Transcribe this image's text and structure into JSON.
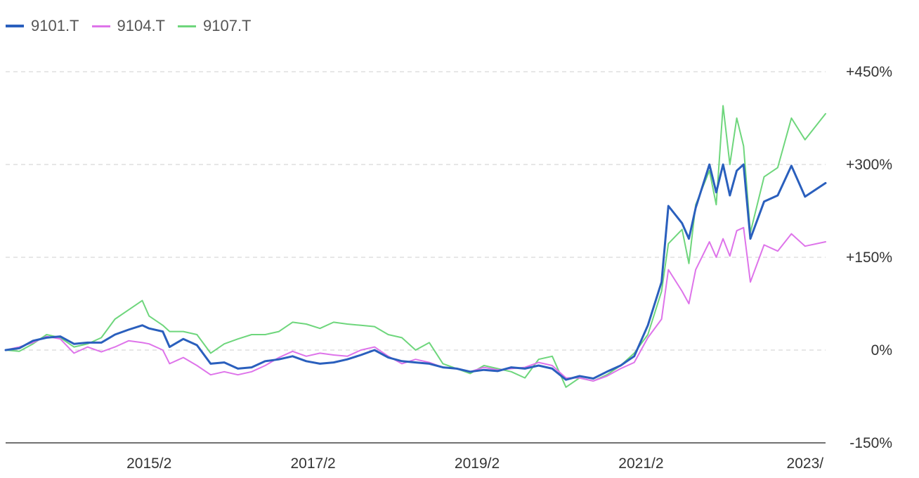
{
  "chart_data": {
    "type": "line",
    "legend_position": "top-left",
    "grid": "horizontal-dashed",
    "y_ticks": [
      {
        "value": 450,
        "label": "+450%"
      },
      {
        "value": 300,
        "label": "+300%"
      },
      {
        "value": 150,
        "label": "+150%"
      },
      {
        "value": 0,
        "label": "0%"
      },
      {
        "value": -150,
        "label": "-150%"
      }
    ],
    "ylim": [
      -150,
      450
    ],
    "x_start": "2013-05",
    "x_end": "2023-05",
    "x_ticks": [
      {
        "date": "2015-02",
        "label": "2015/2"
      },
      {
        "date": "2017-02",
        "label": "2017/2"
      },
      {
        "date": "2019-02",
        "label": "2019/2"
      },
      {
        "date": "2021-02",
        "label": "2021/2"
      },
      {
        "date": "2023-02",
        "label": "2023/"
      }
    ],
    "series": [
      {
        "name": "9101.T",
        "color": "#2a5fbd",
        "width": 3,
        "points": [
          [
            "2013-05",
            0
          ],
          [
            "2013-07",
            3
          ],
          [
            "2013-09",
            15
          ],
          [
            "2013-11",
            20
          ],
          [
            "2014-01",
            22
          ],
          [
            "2014-03",
            10
          ],
          [
            "2014-05",
            12
          ],
          [
            "2014-07",
            12
          ],
          [
            "2014-09",
            25
          ],
          [
            "2014-11",
            33
          ],
          [
            "2015-01",
            40
          ],
          [
            "2015-02",
            35
          ],
          [
            "2015-04",
            30
          ],
          [
            "2015-05",
            5
          ],
          [
            "2015-07",
            18
          ],
          [
            "2015-09",
            8
          ],
          [
            "2015-11",
            -22
          ],
          [
            "2016-01",
            -20
          ],
          [
            "2016-03",
            -30
          ],
          [
            "2016-05",
            -28
          ],
          [
            "2016-07",
            -18
          ],
          [
            "2016-09",
            -15
          ],
          [
            "2016-11",
            -10
          ],
          [
            "2017-01",
            -18
          ],
          [
            "2017-03",
            -22
          ],
          [
            "2017-05",
            -20
          ],
          [
            "2017-07",
            -15
          ],
          [
            "2017-09",
            -8
          ],
          [
            "2017-11",
            0
          ],
          [
            "2018-01",
            -12
          ],
          [
            "2018-03",
            -18
          ],
          [
            "2018-05",
            -20
          ],
          [
            "2018-07",
            -22
          ],
          [
            "2018-09",
            -28
          ],
          [
            "2018-11",
            -30
          ],
          [
            "2019-01",
            -35
          ],
          [
            "2019-03",
            -32
          ],
          [
            "2019-05",
            -34
          ],
          [
            "2019-07",
            -28
          ],
          [
            "2019-09",
            -30
          ],
          [
            "2019-11",
            -25
          ],
          [
            "2020-01",
            -30
          ],
          [
            "2020-03",
            -48
          ],
          [
            "2020-05",
            -42
          ],
          [
            "2020-07",
            -46
          ],
          [
            "2020-09",
            -35
          ],
          [
            "2020-11",
            -25
          ],
          [
            "2021-01",
            -10
          ],
          [
            "2021-03",
            40
          ],
          [
            "2021-05",
            110
          ],
          [
            "2021-06",
            233
          ],
          [
            "2021-08",
            205
          ],
          [
            "2021-09",
            180
          ],
          [
            "2021-10",
            230
          ],
          [
            "2021-12",
            300
          ],
          [
            "2022-01",
            255
          ],
          [
            "2022-02",
            300
          ],
          [
            "2022-03",
            250
          ],
          [
            "2022-04",
            290
          ],
          [
            "2022-05",
            300
          ],
          [
            "2022-06",
            180
          ],
          [
            "2022-08",
            240
          ],
          [
            "2022-10",
            250
          ],
          [
            "2022-12",
            298
          ],
          [
            "2023-02",
            248
          ],
          [
            "2023-05",
            270
          ]
        ]
      },
      {
        "name": "9104.T",
        "color": "#de74ea",
        "width": 2,
        "points": [
          [
            "2013-05",
            0
          ],
          [
            "2013-07",
            5
          ],
          [
            "2013-09",
            12
          ],
          [
            "2013-11",
            22
          ],
          [
            "2014-01",
            18
          ],
          [
            "2014-03",
            -5
          ],
          [
            "2014-05",
            5
          ],
          [
            "2014-07",
            -3
          ],
          [
            "2014-09",
            5
          ],
          [
            "2014-11",
            15
          ],
          [
            "2015-01",
            12
          ],
          [
            "2015-02",
            10
          ],
          [
            "2015-04",
            0
          ],
          [
            "2015-05",
            -22
          ],
          [
            "2015-07",
            -12
          ],
          [
            "2015-09",
            -25
          ],
          [
            "2015-11",
            -40
          ],
          [
            "2016-01",
            -35
          ],
          [
            "2016-03",
            -40
          ],
          [
            "2016-05",
            -35
          ],
          [
            "2016-07",
            -25
          ],
          [
            "2016-09",
            -12
          ],
          [
            "2016-11",
            -2
          ],
          [
            "2017-01",
            -10
          ],
          [
            "2017-03",
            -5
          ],
          [
            "2017-05",
            -8
          ],
          [
            "2017-07",
            -10
          ],
          [
            "2017-09",
            0
          ],
          [
            "2017-11",
            5
          ],
          [
            "2018-01",
            -10
          ],
          [
            "2018-03",
            -22
          ],
          [
            "2018-05",
            -15
          ],
          [
            "2018-07",
            -20
          ],
          [
            "2018-09",
            -28
          ],
          [
            "2018-11",
            -30
          ],
          [
            "2019-01",
            -35
          ],
          [
            "2019-03",
            -28
          ],
          [
            "2019-05",
            -32
          ],
          [
            "2019-07",
            -30
          ],
          [
            "2019-09",
            -28
          ],
          [
            "2019-11",
            -20
          ],
          [
            "2020-01",
            -25
          ],
          [
            "2020-03",
            -45
          ],
          [
            "2020-05",
            -45
          ],
          [
            "2020-07",
            -50
          ],
          [
            "2020-09",
            -42
          ],
          [
            "2020-11",
            -30
          ],
          [
            "2021-01",
            -20
          ],
          [
            "2021-03",
            20
          ],
          [
            "2021-05",
            50
          ],
          [
            "2021-06",
            130
          ],
          [
            "2021-08",
            95
          ],
          [
            "2021-09",
            75
          ],
          [
            "2021-10",
            130
          ],
          [
            "2021-12",
            175
          ],
          [
            "2022-01",
            150
          ],
          [
            "2022-02",
            180
          ],
          [
            "2022-03",
            152
          ],
          [
            "2022-04",
            193
          ],
          [
            "2022-05",
            198
          ],
          [
            "2022-06",
            110
          ],
          [
            "2022-08",
            170
          ],
          [
            "2022-10",
            160
          ],
          [
            "2022-12",
            188
          ],
          [
            "2023-02",
            168
          ],
          [
            "2023-05",
            175
          ]
        ]
      },
      {
        "name": "9107.T",
        "color": "#6ed67c",
        "width": 2,
        "points": [
          [
            "2013-05",
            0
          ],
          [
            "2013-07",
            -2
          ],
          [
            "2013-09",
            10
          ],
          [
            "2013-11",
            25
          ],
          [
            "2014-01",
            20
          ],
          [
            "2014-03",
            5
          ],
          [
            "2014-05",
            10
          ],
          [
            "2014-07",
            20
          ],
          [
            "2014-09",
            50
          ],
          [
            "2014-11",
            65
          ],
          [
            "2015-01",
            80
          ],
          [
            "2015-02",
            55
          ],
          [
            "2015-04",
            40
          ],
          [
            "2015-05",
            30
          ],
          [
            "2015-07",
            30
          ],
          [
            "2015-09",
            25
          ],
          [
            "2015-11",
            -5
          ],
          [
            "2016-01",
            10
          ],
          [
            "2016-03",
            18
          ],
          [
            "2016-05",
            25
          ],
          [
            "2016-07",
            25
          ],
          [
            "2016-09",
            30
          ],
          [
            "2016-11",
            45
          ],
          [
            "2017-01",
            42
          ],
          [
            "2017-03",
            35
          ],
          [
            "2017-05",
            45
          ],
          [
            "2017-07",
            42
          ],
          [
            "2017-09",
            40
          ],
          [
            "2017-11",
            38
          ],
          [
            "2018-01",
            25
          ],
          [
            "2018-03",
            20
          ],
          [
            "2018-05",
            0
          ],
          [
            "2018-07",
            12
          ],
          [
            "2018-09",
            -22
          ],
          [
            "2018-11",
            -30
          ],
          [
            "2019-01",
            -38
          ],
          [
            "2019-03",
            -25
          ],
          [
            "2019-05",
            -30
          ],
          [
            "2019-07",
            -35
          ],
          [
            "2019-09",
            -45
          ],
          [
            "2019-11",
            -15
          ],
          [
            "2020-01",
            -10
          ],
          [
            "2020-03",
            -60
          ],
          [
            "2020-05",
            -45
          ],
          [
            "2020-07",
            -50
          ],
          [
            "2020-09",
            -40
          ],
          [
            "2020-11",
            -25
          ],
          [
            "2021-01",
            -5
          ],
          [
            "2021-03",
            25
          ],
          [
            "2021-05",
            95
          ],
          [
            "2021-06",
            172
          ],
          [
            "2021-08",
            195
          ],
          [
            "2021-09",
            140
          ],
          [
            "2021-10",
            235
          ],
          [
            "2021-12",
            290
          ],
          [
            "2022-01",
            235
          ],
          [
            "2022-02",
            395
          ],
          [
            "2022-03",
            300
          ],
          [
            "2022-04",
            375
          ],
          [
            "2022-05",
            330
          ],
          [
            "2022-06",
            190
          ],
          [
            "2022-08",
            280
          ],
          [
            "2022-10",
            295
          ],
          [
            "2022-12",
            375
          ],
          [
            "2023-02",
            340
          ],
          [
            "2023-05",
            382
          ]
        ]
      }
    ]
  }
}
